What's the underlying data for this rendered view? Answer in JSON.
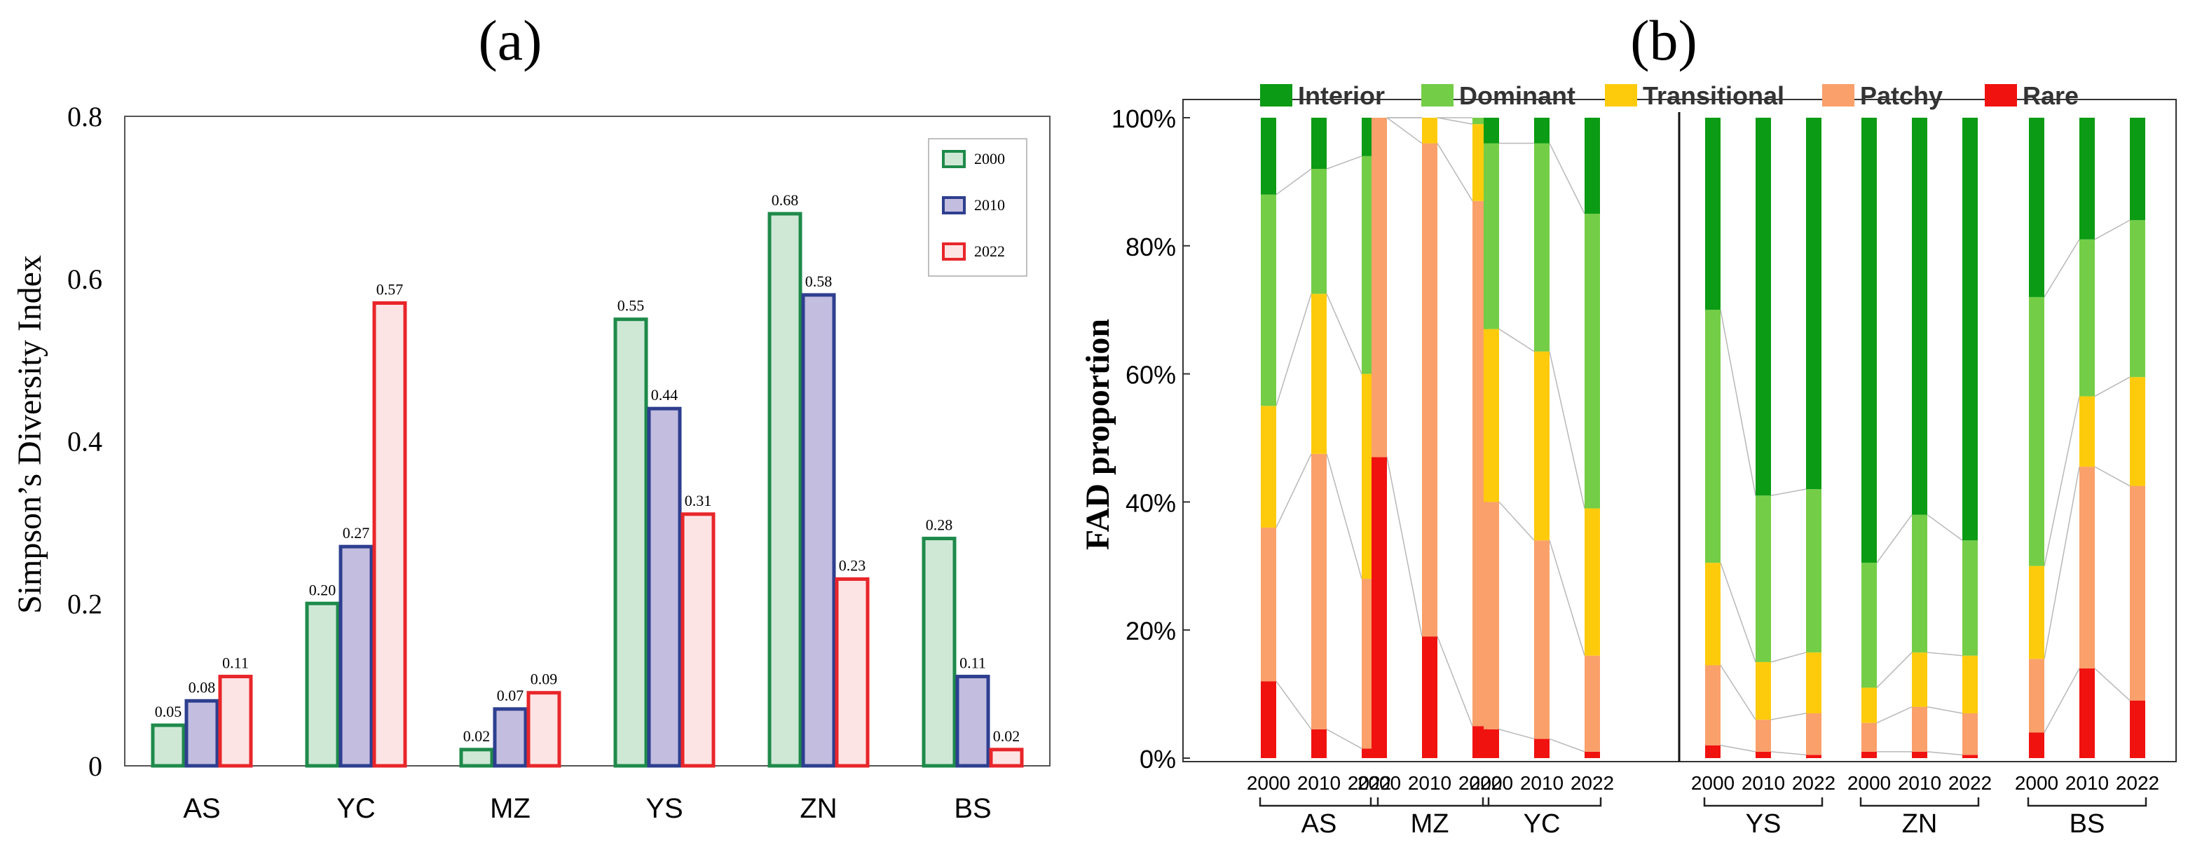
{
  "chart_data": [
    {
      "panel_label": "(a)",
      "type": "bar",
      "title": "",
      "xlabel": "",
      "ylabel": "Simpson’s Diversity Index",
      "categories": [
        "AS",
        "YC",
        "MZ",
        "YS",
        "ZN",
        "BS"
      ],
      "ylim": [
        0,
        0.8
      ],
      "yticks": [
        "0",
        "0.2",
        "0.4",
        "0.6",
        "0.8"
      ],
      "legend_position": "top-right",
      "series": [
        {
          "name": "2000",
          "values": [
            0.05,
            0.2,
            0.02,
            0.55,
            0.68,
            0.28
          ],
          "labels": [
            "0.05",
            "0.20",
            "0.02",
            "0.55",
            "0.68",
            "0.28"
          ],
          "fill": "#cfe8d6",
          "stroke": "#1e8a4a"
        },
        {
          "name": "2010",
          "values": [
            0.08,
            0.27,
            0.07,
            0.44,
            0.58,
            0.11
          ],
          "labels": [
            "0.08",
            "0.27",
            "0.07",
            "0.44",
            "0.58",
            "0.11"
          ],
          "fill": "#c3bde0",
          "stroke": "#2e3f8f"
        },
        {
          "name": "2022",
          "values": [
            0.11,
            0.57,
            0.09,
            0.31,
            0.23,
            0.02
          ],
          "labels": [
            "0.11",
            "0.57",
            "0.09",
            "0.31",
            "0.23",
            "0.02"
          ],
          "fill": "#fde4e4",
          "stroke": "#e8262a"
        }
      ]
    },
    {
      "panel_label": "(b)",
      "type": "bar",
      "stacked": true,
      "title": "",
      "xlabel": "",
      "ylabel": "FAD proportion",
      "ylim": [
        0,
        100
      ],
      "yticks": [
        "0%",
        "20%",
        "40%",
        "60%",
        "80%",
        "100%"
      ],
      "legend_position": "top",
      "groups": [
        {
          "name": "AS",
          "years": [
            "2000",
            "2010",
            "2022"
          ]
        },
        {
          "name": "MZ",
          "years": [
            "2000",
            "2010",
            "2022"
          ]
        },
        {
          "name": "YC",
          "years": [
            "2000",
            "2010",
            "2022"
          ]
        },
        {
          "name": "YS",
          "years": [
            "2000",
            "2010",
            "2022"
          ]
        },
        {
          "name": "ZN",
          "years": [
            "2000",
            "2010",
            "2022"
          ]
        },
        {
          "name": "BS",
          "years": [
            "2000",
            "2010",
            "2022"
          ]
        }
      ],
      "series": [
        {
          "name": "Rare",
          "color": "#f0120f",
          "values": [
            [
              12,
              4.5,
              1.5
            ],
            [
              47,
              19,
              5
            ],
            [
              4.5,
              3,
              1
            ],
            [
              2,
              1,
              0.5
            ],
            [
              1,
              1,
              0.5
            ],
            [
              4,
              14,
              9
            ]
          ]
        },
        {
          "name": "Patchy",
          "color": "#f9a06b",
          "values": [
            [
              24,
              43,
              26.5
            ],
            [
              53,
              77,
              82
            ],
            [
              35.5,
              31,
              15
            ],
            [
              12.5,
              5,
              6.5
            ],
            [
              4.5,
              7,
              6.5
            ],
            [
              11.5,
              31.5,
              33.5
            ]
          ]
        },
        {
          "name": "Transitional",
          "color": "#fecb0c",
          "values": [
            [
              19,
              25,
              32
            ],
            [
              0,
              4,
              12
            ],
            [
              27,
              29.5,
              23
            ],
            [
              16,
              9,
              9.5
            ],
            [
              5.5,
              8.5,
              9
            ],
            [
              14.5,
              11,
              17
            ]
          ]
        },
        {
          "name": "Dominant",
          "color": "#74cd46",
          "values": [
            [
              33,
              19.5,
              34
            ],
            [
              0,
              0,
              1
            ],
            [
              29,
              32.5,
              46
            ],
            [
              39.5,
              26,
              25.5
            ],
            [
              19.5,
              21.5,
              18
            ],
            [
              42,
              24.5,
              24.5
            ]
          ]
        },
        {
          "name": "Interior",
          "color": "#0b9b14",
          "values": [
            [
              12,
              8,
              6
            ],
            [
              0,
              0,
              0
            ],
            [
              4,
              4,
              15
            ],
            [
              30,
              59,
              58
            ],
            [
              69.5,
              62,
              66
            ],
            [
              28,
              19,
              16
            ]
          ]
        }
      ]
    }
  ]
}
